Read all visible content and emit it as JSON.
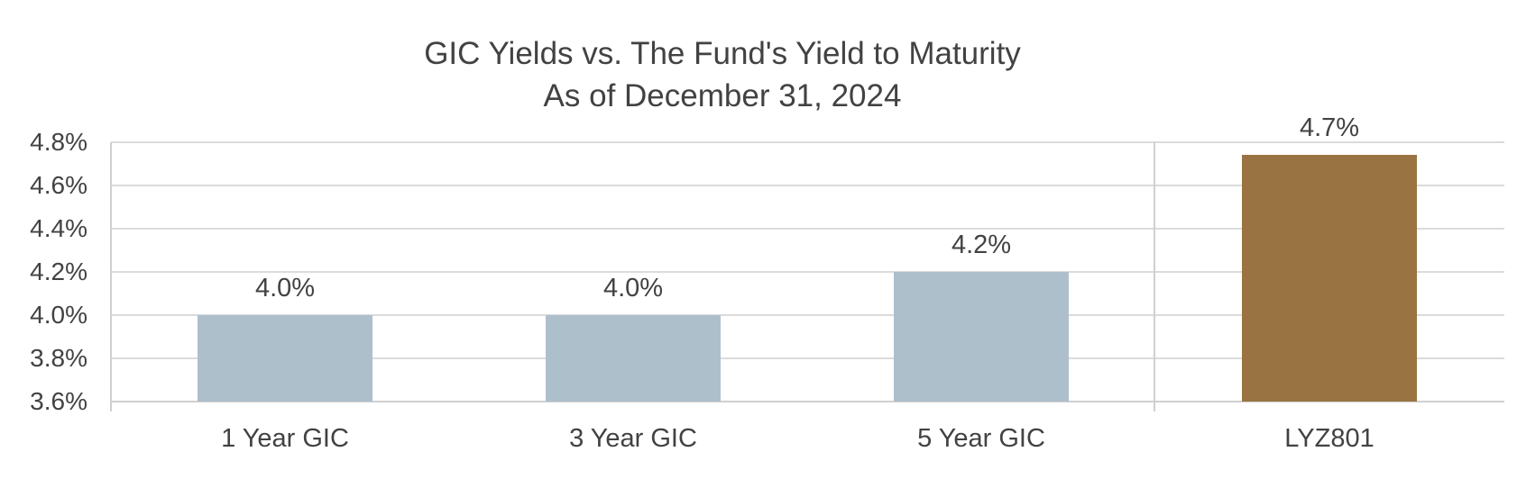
{
  "chart": {
    "title_line1": "GIC Yields vs. The Fund's Yield to Maturity",
    "title_line2": "As of December 31, 2024"
  },
  "colors": {
    "gic_bar": "#aebfcc",
    "fund_bar": "#997342",
    "text": "#424242",
    "gridline": "#dbdbdb",
    "axis_line": "#d0d0d0"
  },
  "chart_data": {
    "type": "bar",
    "title": "GIC Yields vs. The Fund's Yield to Maturity",
    "subtitle": "As of December 31, 2024",
    "categories": [
      "1 Year GIC",
      "3 Year GIC",
      "5 Year GIC",
      "LYZ801"
    ],
    "values": [
      4.0,
      4.0,
      4.2,
      4.74
    ],
    "data_labels": [
      "4.0%",
      "4.0%",
      "4.2%",
      "4.7%"
    ],
    "bar_colors": [
      "#aebfcc",
      "#aebfcc",
      "#aebfcc",
      "#997342"
    ],
    "xlabel": "",
    "ylabel": "",
    "ylim": [
      3.6,
      4.8
    ],
    "ytick_step": 0.2,
    "ytick_labels": [
      "4.8%",
      "4.6%",
      "4.4%",
      "4.2%",
      "4.0%",
      "3.8%",
      "3.6%"
    ],
    "grid": "horizontal",
    "legend": "none",
    "section_divider_after_category": "5 Year GIC"
  }
}
